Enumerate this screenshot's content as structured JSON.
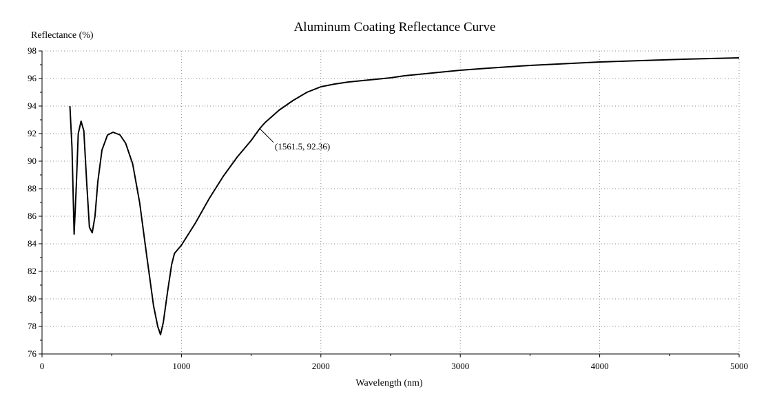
{
  "chart_data": {
    "type": "line",
    "title": "Aluminum Coating Reflectance Curve",
    "xlabel": "Wavelength (nm)",
    "ylabel": "Reflectance (%)",
    "xlim": [
      0,
      5000
    ],
    "ylim": [
      76,
      98
    ],
    "x_ticks": [
      0,
      1000,
      2000,
      3000,
      4000,
      5000
    ],
    "y_ticks": [
      76,
      78,
      80,
      82,
      84,
      86,
      88,
      90,
      92,
      94,
      96,
      98
    ],
    "grid": true,
    "series": [
      {
        "name": "Reflectance",
        "color": "#000000",
        "points": [
          [
            200,
            94.0
          ],
          [
            215,
            91.0
          ],
          [
            230,
            84.7
          ],
          [
            245,
            88.0
          ],
          [
            260,
            92.0
          ],
          [
            280,
            92.9
          ],
          [
            300,
            92.2
          ],
          [
            320,
            88.5
          ],
          [
            340,
            85.2
          ],
          [
            360,
            84.8
          ],
          [
            380,
            86.0
          ],
          [
            400,
            88.5
          ],
          [
            430,
            90.8
          ],
          [
            470,
            91.9
          ],
          [
            510,
            92.1
          ],
          [
            560,
            91.9
          ],
          [
            600,
            91.3
          ],
          [
            650,
            89.8
          ],
          [
            700,
            87.0
          ],
          [
            750,
            83.2
          ],
          [
            800,
            79.5
          ],
          [
            830,
            78.0
          ],
          [
            850,
            77.4
          ],
          [
            870,
            78.3
          ],
          [
            900,
            80.5
          ],
          [
            930,
            82.5
          ],
          [
            950,
            83.3
          ],
          [
            1000,
            83.9
          ],
          [
            1100,
            85.5
          ],
          [
            1200,
            87.3
          ],
          [
            1300,
            88.9
          ],
          [
            1400,
            90.3
          ],
          [
            1500,
            91.5
          ],
          [
            1561.5,
            92.36
          ],
          [
            1600,
            92.8
          ],
          [
            1700,
            93.7
          ],
          [
            1800,
            94.4
          ],
          [
            1900,
            95.0
          ],
          [
            2000,
            95.4
          ],
          [
            2100,
            95.6
          ],
          [
            2200,
            95.75
          ],
          [
            2300,
            95.85
          ],
          [
            2400,
            95.95
          ],
          [
            2500,
            96.05
          ],
          [
            2600,
            96.2
          ],
          [
            2800,
            96.4
          ],
          [
            3000,
            96.6
          ],
          [
            3200,
            96.75
          ],
          [
            3500,
            96.95
          ],
          [
            3800,
            97.1
          ],
          [
            4000,
            97.2
          ],
          [
            4300,
            97.3
          ],
          [
            4600,
            97.4
          ],
          [
            5000,
            97.5
          ]
        ]
      }
    ],
    "annotations": [
      {
        "x": 1561.5,
        "y": 92.36,
        "text": "(1561.5, 92.36)"
      }
    ]
  }
}
